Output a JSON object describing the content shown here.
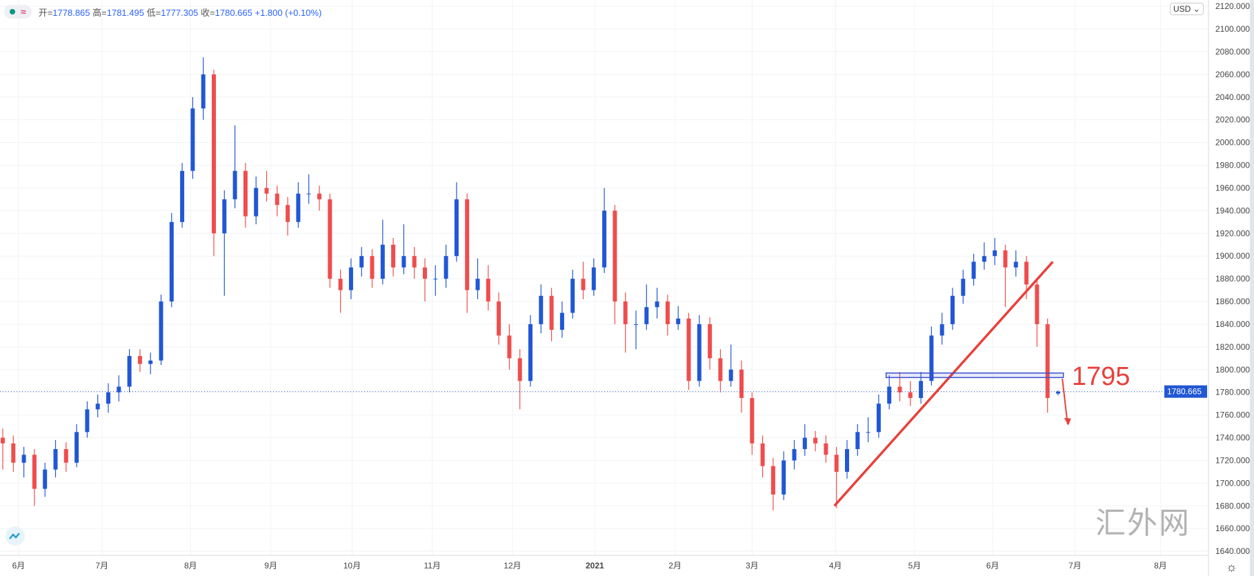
{
  "header": {
    "open_key": "开=",
    "open": "1778.865",
    "high_key": "高=",
    "high": "1781.495",
    "low_key": "低=",
    "low": "1777.305",
    "close_key": "收=",
    "close": "1780.665",
    "change": "+1.800 (+0.10%)",
    "wave_symbol": "≈"
  },
  "currency_button": "USD ⌄",
  "watermark": "汇外网",
  "settings_icon": "☼",
  "colors": {
    "up": "#2157d4",
    "down": "#ef4d4d",
    "annotation": "#e8403a",
    "band": "#3b4fd0"
  },
  "chart_data": {
    "type": "candlestick",
    "title": "",
    "ylim": [
      1630,
      2125
    ],
    "y_ticks": [
      2120,
      2100,
      2080,
      2060,
      2040,
      2020,
      2000,
      1980,
      1960,
      1940,
      1920,
      1900,
      1880,
      1860,
      1840,
      1820,
      1800,
      1780,
      1760,
      1740,
      1720,
      1700,
      1680,
      1660,
      1640
    ],
    "y_tick_format": "0.000",
    "x_ticks": [
      {
        "label": "6月",
        "index": 1.5
      },
      {
        "label": "7月",
        "index": 9.4
      },
      {
        "label": "8月",
        "index": 17.8
      },
      {
        "label": "9月",
        "index": 25.4
      },
      {
        "label": "10月",
        "index": 33.1
      },
      {
        "label": "11月",
        "index": 40.7
      },
      {
        "label": "12月",
        "index": 48.3
      },
      {
        "label": "2021",
        "index": 56.1
      },
      {
        "label": "2月",
        "index": 63.7
      },
      {
        "label": "3月",
        "index": 71
      },
      {
        "label": "4月",
        "index": 78.9
      },
      {
        "label": "5月",
        "index": 86.4
      },
      {
        "label": "6月",
        "index": 93.8
      },
      {
        "label": "7月",
        "index": 101.6
      },
      {
        "label": "8月",
        "index": 109.7
      }
    ],
    "last_price": "1780.665",
    "candles": [
      [
        1740,
        1748,
        1712,
        1735
      ],
      [
        1735,
        1742,
        1710,
        1718
      ],
      [
        1718,
        1732,
        1705,
        1725
      ],
      [
        1725,
        1730,
        1680,
        1695
      ],
      [
        1695,
        1718,
        1688,
        1712
      ],
      [
        1712,
        1738,
        1705,
        1730
      ],
      [
        1730,
        1736,
        1710,
        1718
      ],
      [
        1718,
        1752,
        1714,
        1745
      ],
      [
        1745,
        1772,
        1740,
        1765
      ],
      [
        1765,
        1778,
        1758,
        1770
      ],
      [
        1770,
        1788,
        1762,
        1780
      ],
      [
        1780,
        1795,
        1772,
        1785
      ],
      [
        1785,
        1818,
        1780,
        1812
      ],
      [
        1812,
        1818,
        1798,
        1805
      ],
      [
        1805,
        1815,
        1796,
        1808
      ],
      [
        1808,
        1866,
        1804,
        1860
      ],
      [
        1860,
        1938,
        1855,
        1930
      ],
      [
        1930,
        1982,
        1925,
        1975
      ],
      [
        1975,
        2040,
        1968,
        2030
      ],
      [
        2030,
        2075,
        2020,
        2060
      ],
      [
        2060,
        2064,
        1900,
        1920
      ],
      [
        1920,
        1958,
        1865,
        1950
      ],
      [
        1950,
        2015,
        1942,
        1975
      ],
      [
        1975,
        1982,
        1925,
        1935
      ],
      [
        1935,
        1970,
        1928,
        1960
      ],
      [
        1960,
        1975,
        1948,
        1955
      ],
      [
        1955,
        1962,
        1935,
        1945
      ],
      [
        1945,
        1952,
        1918,
        1930
      ],
      [
        1930,
        1965,
        1925,
        1955
      ],
      [
        1955,
        1972,
        1946,
        1955
      ],
      [
        1955,
        1962,
        1940,
        1950
      ],
      [
        1950,
        1955,
        1872,
        1880
      ],
      [
        1880,
        1888,
        1850,
        1870
      ],
      [
        1870,
        1898,
        1862,
        1890
      ],
      [
        1890,
        1908,
        1882,
        1900
      ],
      [
        1900,
        1906,
        1872,
        1880
      ],
      [
        1880,
        1932,
        1875,
        1910
      ],
      [
        1910,
        1916,
        1882,
        1890
      ],
      [
        1890,
        1928,
        1884,
        1900
      ],
      [
        1900,
        1908,
        1880,
        1890
      ],
      [
        1890,
        1898,
        1860,
        1880
      ],
      [
        1880,
        1892,
        1865,
        1880
      ],
      [
        1880,
        1910,
        1872,
        1900
      ],
      [
        1900,
        1965,
        1895,
        1950
      ],
      [
        1950,
        1955,
        1850,
        1870
      ],
      [
        1870,
        1898,
        1862,
        1880
      ],
      [
        1880,
        1892,
        1852,
        1860
      ],
      [
        1860,
        1868,
        1822,
        1830
      ],
      [
        1830,
        1840,
        1800,
        1810
      ],
      [
        1810,
        1818,
        1765,
        1790
      ],
      [
        1790,
        1848,
        1785,
        1840
      ],
      [
        1840,
        1875,
        1832,
        1865
      ],
      [
        1865,
        1872,
        1825,
        1835
      ],
      [
        1835,
        1860,
        1828,
        1850
      ],
      [
        1850,
        1888,
        1845,
        1880
      ],
      [
        1880,
        1895,
        1862,
        1870
      ],
      [
        1870,
        1898,
        1865,
        1890
      ],
      [
        1890,
        1960,
        1885,
        1940
      ],
      [
        1940,
        1945,
        1840,
        1860
      ],
      [
        1860,
        1868,
        1815,
        1840
      ],
      [
        1840,
        1852,
        1818,
        1840
      ],
      [
        1840,
        1875,
        1835,
        1855
      ],
      [
        1855,
        1872,
        1845,
        1860
      ],
      [
        1860,
        1866,
        1830,
        1840
      ],
      [
        1840,
        1856,
        1835,
        1845
      ],
      [
        1845,
        1850,
        1782,
        1790
      ],
      [
        1790,
        1848,
        1785,
        1840
      ],
      [
        1840,
        1846,
        1800,
        1810
      ],
      [
        1810,
        1818,
        1780,
        1790
      ],
      [
        1790,
        1822,
        1785,
        1800
      ],
      [
        1800,
        1808,
        1762,
        1775
      ],
      [
        1775,
        1780,
        1725,
        1735
      ],
      [
        1735,
        1742,
        1705,
        1715
      ],
      [
        1715,
        1722,
        1676,
        1690
      ],
      [
        1690,
        1728,
        1685,
        1720
      ],
      [
        1720,
        1738,
        1712,
        1730
      ],
      [
        1730,
        1752,
        1724,
        1740
      ],
      [
        1740,
        1746,
        1728,
        1735
      ],
      [
        1735,
        1742,
        1718,
        1725
      ],
      [
        1725,
        1732,
        1678,
        1710
      ],
      [
        1710,
        1738,
        1704,
        1730
      ],
      [
        1730,
        1752,
        1724,
        1745
      ],
      [
        1745,
        1758,
        1736,
        1745
      ],
      [
        1745,
        1778,
        1740,
        1770
      ],
      [
        1770,
        1795,
        1765,
        1785
      ],
      [
        1785,
        1798,
        1772,
        1780
      ],
      [
        1780,
        1790,
        1768,
        1775
      ],
      [
        1775,
        1798,
        1770,
        1790
      ],
      [
        1790,
        1838,
        1786,
        1830
      ],
      [
        1830,
        1850,
        1822,
        1840
      ],
      [
        1840,
        1872,
        1835,
        1865
      ],
      [
        1865,
        1888,
        1858,
        1880
      ],
      [
        1880,
        1902,
        1874,
        1895
      ],
      [
        1895,
        1912,
        1888,
        1900
      ],
      [
        1900,
        1916,
        1892,
        1905
      ],
      [
        1905,
        1910,
        1855,
        1890
      ],
      [
        1890,
        1905,
        1882,
        1895
      ],
      [
        1895,
        1900,
        1862,
        1875
      ],
      [
        1875,
        1880,
        1820,
        1840
      ],
      [
        1840,
        1845,
        1762,
        1775
      ],
      [
        1778.865,
        1781.495,
        1777.305,
        1780.665
      ]
    ],
    "annotations": {
      "trendline": {
        "from": {
          "index": 78.8,
          "price": 1680
        },
        "to": {
          "index": 99.5,
          "price": 1895
        }
      },
      "band": {
        "from_index": 83.7,
        "to_index": 100.5,
        "price_low": 1793,
        "price_high": 1797
      },
      "arrow": {
        "from": {
          "index": 100.4,
          "price": 1792
        },
        "to": {
          "index": 100.9,
          "price": 1752
        }
      },
      "label": {
        "text": "1795",
        "index": 101.3,
        "price": 1795
      }
    }
  }
}
